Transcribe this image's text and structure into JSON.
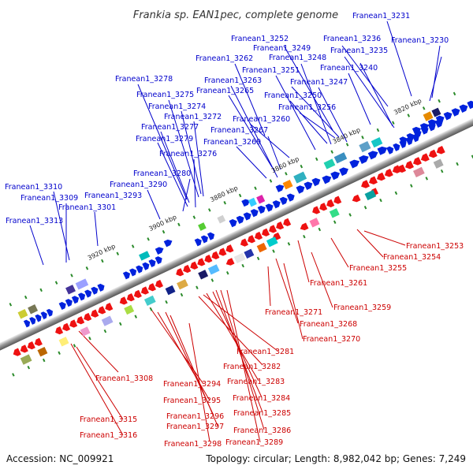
{
  "title": "Frankia sp. EAN1pec, complete genome",
  "footer": {
    "accession": "Accession: NC_009921",
    "summary": "Topology: circular; Length: 8,982,042 bp; Genes: 7,249"
  },
  "colors": {
    "forward": "#0022dd",
    "reverse": "#ee1111",
    "backbone": "#8a8a8a",
    "tick": "#2a8a2a",
    "top_label": "#0000cc",
    "bottom_label": "#cc0000"
  },
  "kbp_markers": [
    "3820 kbp",
    "3840 kbp",
    "3860 kbp",
    "3880 kbp",
    "3900 kbp",
    "3920 kbp"
  ],
  "top_labels": [
    "Franean1_3231",
    "Franean1_3252",
    "Franean1_3236",
    "Franean1_3230",
    "Franean1_3249",
    "Franean1_3235",
    "Franean1_3262",
    "Franean1_3248",
    "Franean1_3240",
    "Franean1_3251",
    "Franean1_3278",
    "Franean1_3263",
    "Franean1_3247",
    "Franean1_3265",
    "Franean1_3275",
    "Franean1_3250",
    "Franean1_3274",
    "Franean1_3256",
    "Franean1_3272",
    "Franean1_3260",
    "Franean1_3277",
    "Franean1_3267",
    "Franean1_3279",
    "Franean1_3269",
    "Franean1_3276",
    "Franean1_3280",
    "Franean1_3290",
    "Franean1_3310",
    "Franean1_3293",
    "Franean1_3309",
    "Franean1_3301",
    "Franean1_3313"
  ],
  "bottom_labels": [
    "Franean1_3253",
    "Franean1_3254",
    "Franean1_3255",
    "Franean1_3261",
    "Franean1_3259",
    "Franean1_3271",
    "Franean1_3268",
    "Franean1_3270",
    "Franean1_3281",
    "Franean1_3282",
    "Franean1_3308",
    "Franean1_3283",
    "Franean1_3294",
    "Franean1_3284",
    "Franean1_3295",
    "Franean1_3285",
    "Franean1_3296",
    "Franean1_3315",
    "Franean1_3286",
    "Franean1_3297",
    "Franean1_3316",
    "Franean1_3289",
    "Franean1_3298"
  ]
}
